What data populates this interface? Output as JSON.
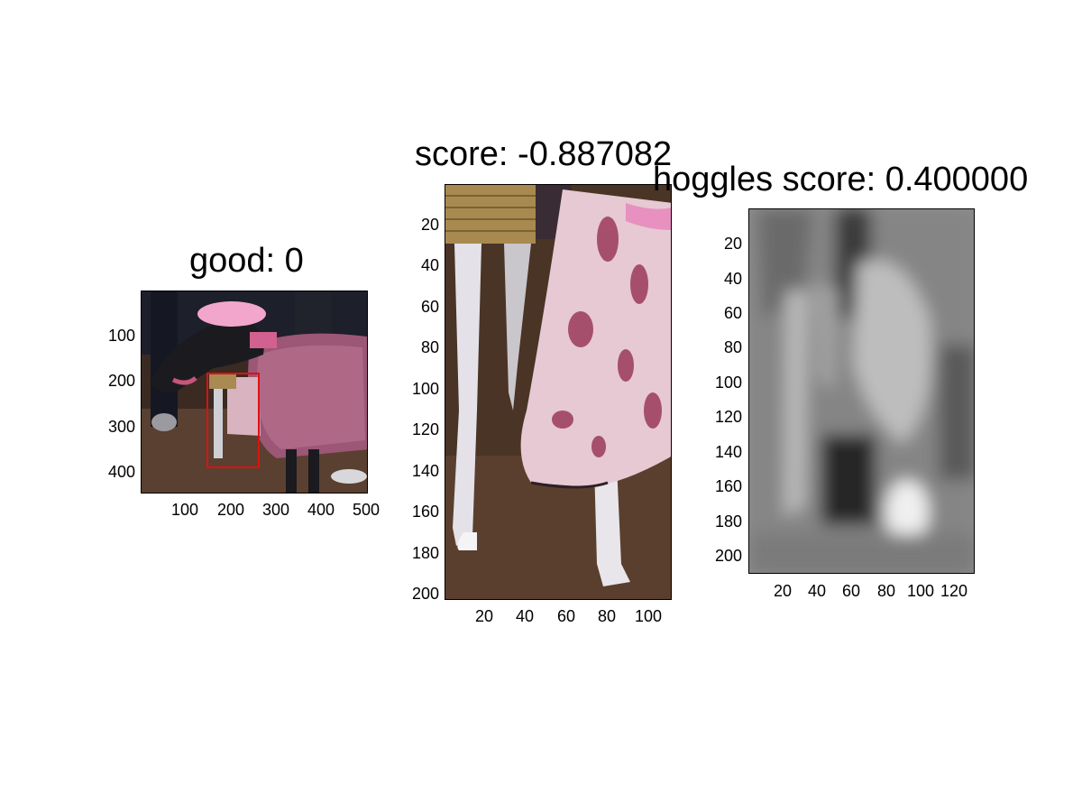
{
  "panels": [
    {
      "title": "good: 0",
      "yticks": [
        "100",
        "200",
        "300",
        "400"
      ],
      "xticks": [
        "100",
        "200",
        "300",
        "400",
        "500"
      ]
    },
    {
      "title": "score: -0.887082",
      "yticks": [
        "20",
        "40",
        "60",
        "80",
        "100",
        "120",
        "140",
        "160",
        "180",
        "200"
      ],
      "xticks": [
        "20",
        "40",
        "60",
        "80",
        "100"
      ]
    },
    {
      "title": "hoggles score: 0.400000",
      "yticks": [
        "20",
        "40",
        "60",
        "80",
        "100",
        "120",
        "140",
        "160",
        "180",
        "200"
      ],
      "xticks": [
        "20",
        "40",
        "60",
        "80",
        "100",
        "120"
      ]
    }
  ],
  "colors": {
    "detection_box": "#e01010",
    "coat_pink": "#b0607a",
    "background_brown": "#4a3426"
  }
}
